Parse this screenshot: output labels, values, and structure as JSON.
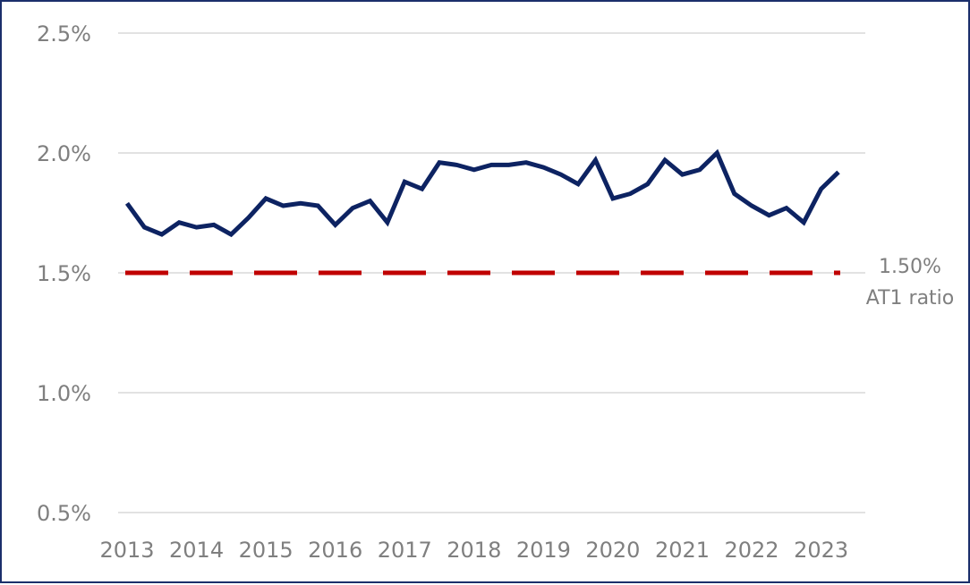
{
  "chart_data": {
    "type": "line",
    "title": "",
    "xlabel": "",
    "ylabel": "",
    "ylim": [
      0.5,
      2.5
    ],
    "xlim": [
      2013,
      2023.3
    ],
    "y_ticks": [
      "0.5%",
      "1.0%",
      "1.5%",
      "2.0%",
      "2.5%"
    ],
    "y_tick_values": [
      0.5,
      1.0,
      1.5,
      2.0,
      2.5
    ],
    "x_ticks": [
      "2013",
      "2014",
      "2015",
      "2016",
      "2017",
      "2018",
      "2019",
      "2020",
      "2021",
      "2022",
      "2023"
    ],
    "x_tick_values": [
      2013,
      2014,
      2015,
      2016,
      2017,
      2018,
      2019,
      2020,
      2021,
      2022,
      2023
    ],
    "grid": "horizontal",
    "series": [
      {
        "color": "#0d2362",
        "x": [
          2013.0,
          2013.25,
          2013.5,
          2013.75,
          2014.0,
          2014.25,
          2014.5,
          2014.75,
          2015.0,
          2015.25,
          2015.5,
          2015.75,
          2016.0,
          2016.25,
          2016.5,
          2016.75,
          2017.0,
          2017.25,
          2017.5,
          2017.75,
          2018.0,
          2018.25,
          2018.5,
          2018.75,
          2019.0,
          2019.25,
          2019.5,
          2019.75,
          2020.0,
          2020.25,
          2020.5,
          2020.75,
          2021.0,
          2021.25,
          2021.5,
          2021.75,
          2022.0,
          2022.25,
          2022.5,
          2022.75,
          2023.0,
          2023.25
        ],
        "y": [
          1.79,
          1.69,
          1.66,
          1.71,
          1.69,
          1.7,
          1.66,
          1.73,
          1.81,
          1.78,
          1.79,
          1.78,
          1.7,
          1.77,
          1.8,
          1.71,
          1.88,
          1.85,
          1.96,
          1.95,
          1.93,
          1.95,
          1.95,
          1.96,
          1.94,
          1.91,
          1.87,
          1.97,
          1.81,
          1.83,
          1.87,
          1.97,
          1.91,
          1.93,
          2.0,
          1.83,
          1.78,
          1.74,
          1.77,
          1.71,
          1.85,
          1.92
        ]
      }
    ],
    "reference_line": {
      "value": 1.5,
      "color": "#c00000",
      "style": "dashed",
      "label_value": "1.50%",
      "label_text": "AT1 ratio"
    }
  }
}
